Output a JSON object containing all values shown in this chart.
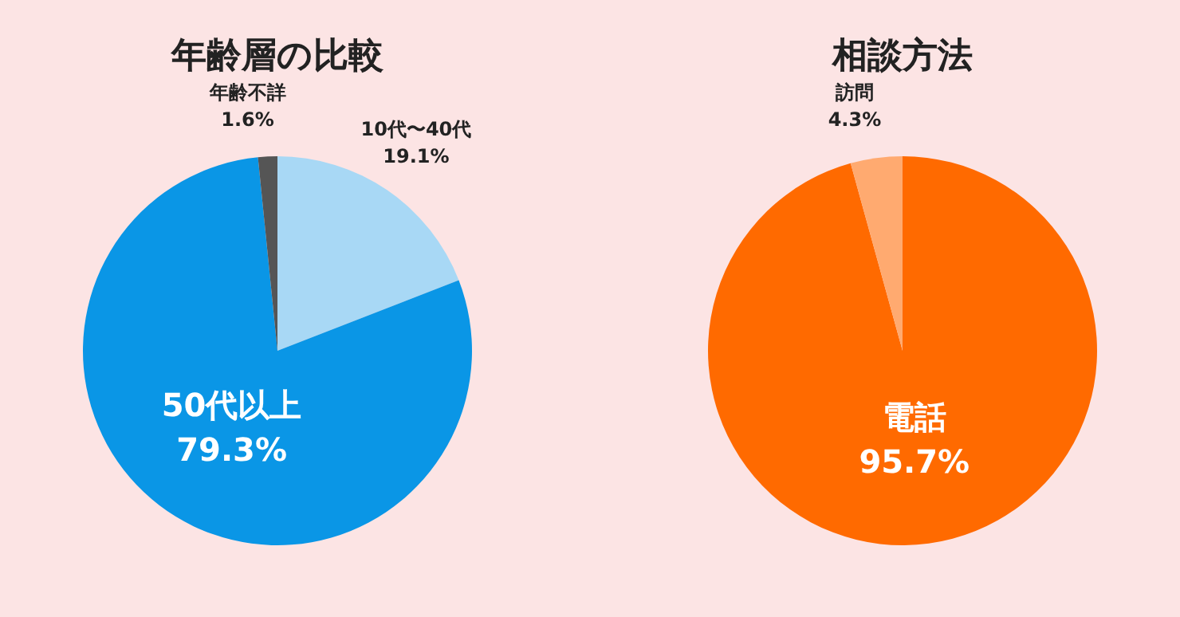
{
  "chart_data": [
    {
      "type": "pie",
      "title": "年齢層の比較",
      "categories": [
        "10代〜40代",
        "50代以上",
        "年齢不詳"
      ],
      "values": [
        19.1,
        79.3,
        1.6
      ],
      "colors": [
        "#a8d8f5",
        "#0a96e6",
        "#555555"
      ],
      "value_labels": [
        "19.1%",
        "79.3%",
        "1.6%"
      ]
    },
    {
      "type": "pie",
      "title": "相談方法",
      "categories": [
        "電話",
        "訪問"
      ],
      "values": [
        95.7,
        4.3
      ],
      "colors": [
        "#ff6a00",
        "#ffaa70"
      ],
      "value_labels": [
        "95.7%",
        "4.3%"
      ]
    }
  ]
}
